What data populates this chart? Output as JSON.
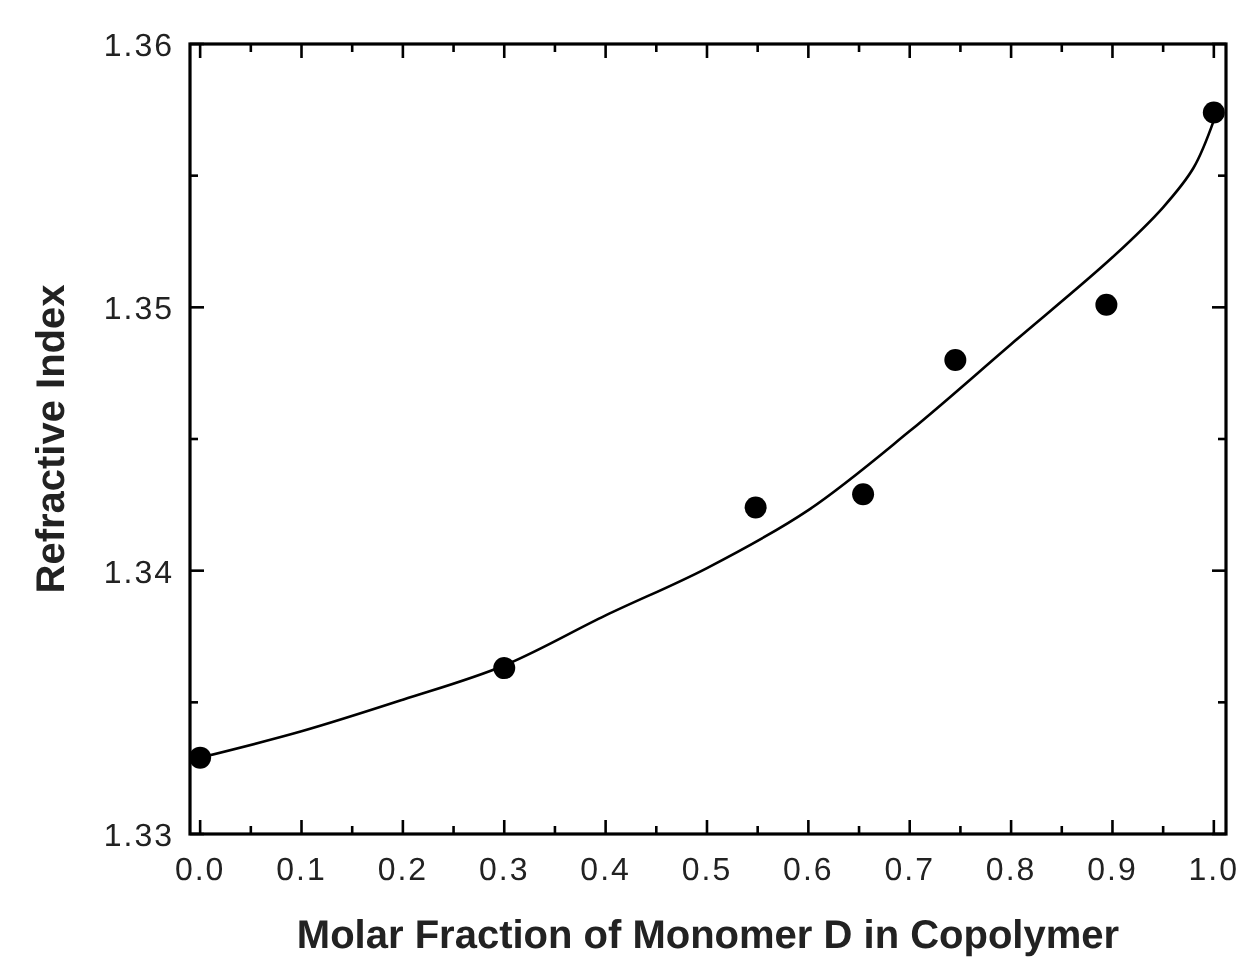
{
  "chart_data": {
    "type": "scatter",
    "xlabel": "Molar Fraction of Monomer D in Copolymer",
    "ylabel": "Refractive Index",
    "xlim": [
      -0.01,
      1.012
    ],
    "ylim": [
      1.33,
      1.36
    ],
    "xticks": [
      {
        "value": 0,
        "label": "0.0"
      },
      {
        "value": 0.05,
        "label": null
      },
      {
        "value": 0.1,
        "label": "0.1"
      },
      {
        "value": 0.15,
        "label": null
      },
      {
        "value": 0.2,
        "label": "0.2"
      },
      {
        "value": 0.25,
        "label": null
      },
      {
        "value": 0.3,
        "label": "0.3"
      },
      {
        "value": 0.35,
        "label": null
      },
      {
        "value": 0.4,
        "label": "0.4"
      },
      {
        "value": 0.45,
        "label": null
      },
      {
        "value": 0.5,
        "label": "0.5"
      },
      {
        "value": 0.55,
        "label": null
      },
      {
        "value": 0.6,
        "label": "0.6"
      },
      {
        "value": 0.65,
        "label": null
      },
      {
        "value": 0.7,
        "label": "0.7"
      },
      {
        "value": 0.75,
        "label": null
      },
      {
        "value": 0.8,
        "label": "0.8"
      },
      {
        "value": 0.85,
        "label": null
      },
      {
        "value": 0.9,
        "label": "0.9"
      },
      {
        "value": 0.95,
        "label": null
      },
      {
        "value": 1,
        "label": "1.0"
      }
    ],
    "yticks": [
      1.33,
      {
        "value": 1.335,
        "label": null
      },
      1.34,
      {
        "value": 1.345,
        "label": null
      },
      1.35,
      {
        "value": 1.355,
        "label": null
      },
      1.36
    ],
    "grid": false,
    "series": [
      {
        "color": "#000000",
        "marker": "circle",
        "x": [
          0,
          0.3,
          0.548,
          0.654,
          0.745,
          0.894,
          1.0
        ],
        "values": [
          1.3329,
          1.3363,
          1.3424,
          1.3429,
          1.348,
          1.3501,
          1.3574
        ]
      },
      {
        "type": "line",
        "color": "#000000",
        "marker": "none",
        "line_style": "solid",
        "x": [
          0,
          0.1,
          0.2,
          0.3,
          0.4,
          0.5,
          0.6,
          0.7,
          0.8,
          0.9,
          0.95,
          0.98,
          1.0
        ],
        "values": [
          1.3329,
          1.3339,
          1.3351,
          1.3364,
          1.3383,
          1.3401,
          1.3423,
          1.3453,
          1.3486,
          1.3519,
          1.3538,
          1.3553,
          1.3571
        ]
      }
    ]
  }
}
